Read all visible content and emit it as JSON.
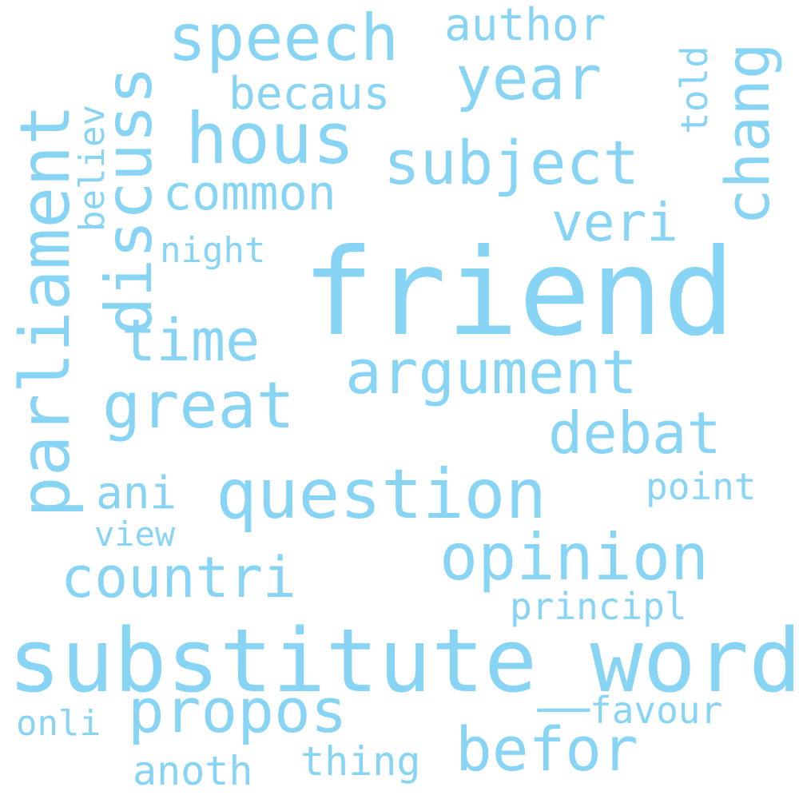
{
  "color": "#87d4f5",
  "words": {
    "friend": "friend",
    "substitute_word": "substitute_word",
    "question": "question",
    "opinion": "opinion",
    "parliament": "parliament",
    "speech": "speech",
    "hous": "hous",
    "subject": "subject",
    "great": "great",
    "argument": "argument",
    "discuss": "discuss",
    "year": "year",
    "chang": "chang",
    "time": "time",
    "common": "common",
    "debat": "debat",
    "veri": "veri",
    "befor": "befor",
    "propos": "propos",
    "countri": "countri",
    "becaus": "becaus",
    "author": "author",
    "ani": "ani",
    "point": "point",
    "principl": "principl",
    "night": "night",
    "believ": "believ",
    "told": "told",
    "view": "view",
    "favour": "favour",
    "onli": "onli",
    "thing": "thing",
    "anoth": "anoth"
  }
}
